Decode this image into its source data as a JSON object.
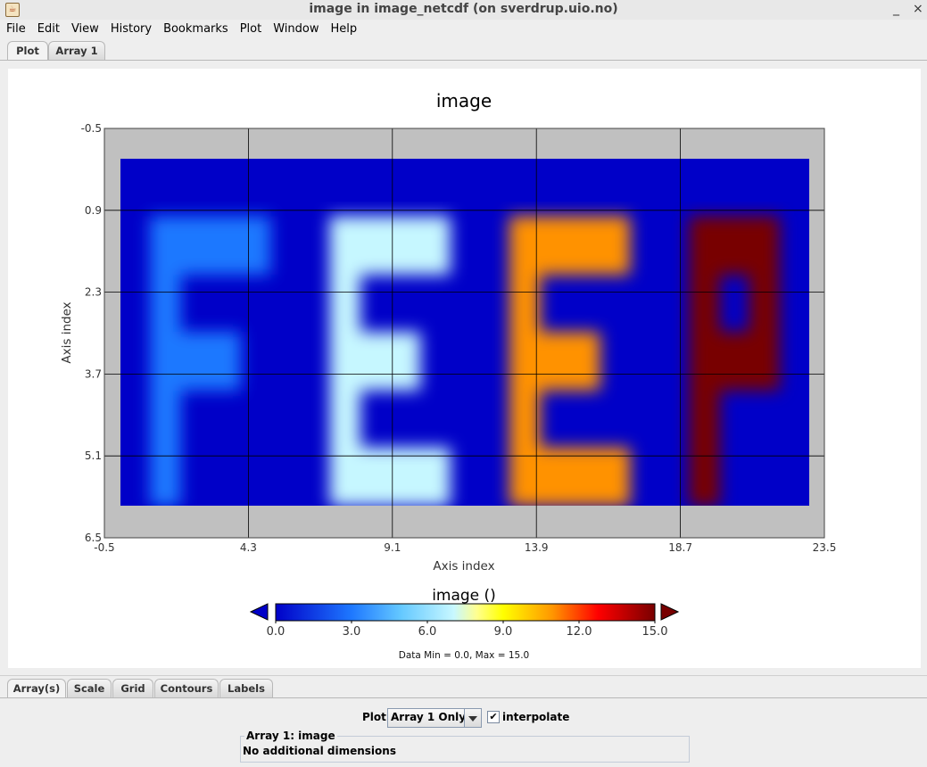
{
  "window": {
    "title": "image in image_netcdf (on sverdrup.uio.no)",
    "minimize": "_",
    "close": "×"
  },
  "menu": [
    "File",
    "Edit",
    "View",
    "History",
    "Bookmarks",
    "Plot",
    "Window",
    "Help"
  ],
  "top_tabs": [
    "Plot",
    "Array 1"
  ],
  "bottom_tabs": [
    "Array(s)",
    "Scale",
    "Grid",
    "Contours",
    "Labels"
  ],
  "controls": {
    "plot_label": "Plot",
    "plot_select": "Array 1 Only",
    "interpolate_label": "interpolate",
    "interpolate_checked": "✔",
    "group_title": "Array 1: image",
    "group_text": "No additional dimensions"
  },
  "chart_data": {
    "type": "heatmap",
    "title": "image",
    "xlabel": "Axis index",
    "ylabel": "Axis index",
    "xlim": [
      -0.5,
      23.5
    ],
    "ylim": [
      6.5,
      -0.5
    ],
    "xticks": [
      "-0.5",
      "4.3",
      "9.1",
      "13.9",
      "18.7",
      "23.5"
    ],
    "yticks": [
      "-0.5",
      "0.9",
      "2.3",
      "3.7",
      "5.1",
      "6.5"
    ],
    "grid": true,
    "colorbar": {
      "title": "image ()",
      "ticks": [
        "0.0",
        "3.0",
        "6.0",
        "9.0",
        "12.0",
        "15.0"
      ],
      "min": 0,
      "max": 15
    },
    "stats": "Data Min = 0.0, Max = 15.0",
    "rows": 6,
    "cols": 23,
    "values": [
      [
        0,
        0,
        0,
        0,
        0,
        0,
        0,
        0,
        0,
        0,
        0,
        0,
        0,
        0,
        0,
        0,
        0,
        0,
        0,
        0,
        0,
        0,
        0
      ],
      [
        0,
        3,
        3,
        3,
        3,
        0,
        0,
        7,
        7,
        7,
        7,
        0,
        0,
        11,
        11,
        11,
        11,
        0,
        0,
        15,
        15,
        15,
        0
      ],
      [
        0,
        3,
        0,
        0,
        0,
        0,
        0,
        7,
        0,
        0,
        0,
        0,
        0,
        11,
        0,
        0,
        0,
        0,
        0,
        15,
        0,
        15,
        0
      ],
      [
        0,
        3,
        3,
        3,
        0,
        0,
        0,
        7,
        7,
        7,
        0,
        0,
        0,
        11,
        11,
        11,
        0,
        0,
        0,
        15,
        15,
        15,
        0
      ],
      [
        0,
        3,
        0,
        0,
        0,
        0,
        0,
        7,
        0,
        0,
        0,
        0,
        0,
        11,
        0,
        0,
        0,
        0,
        0,
        15,
        0,
        0,
        0
      ],
      [
        0,
        3,
        0,
        0,
        0,
        0,
        0,
        7,
        7,
        7,
        7,
        0,
        0,
        11,
        11,
        11,
        11,
        0,
        0,
        15,
        0,
        0,
        0
      ]
    ]
  }
}
